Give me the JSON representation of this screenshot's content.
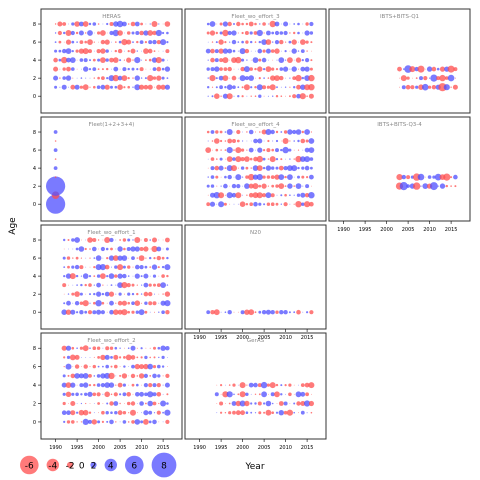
{
  "figure": {
    "ylabel": "Age",
    "xlabel": "Year",
    "colors": {
      "negative": "#ff4d4d",
      "positive": "#4d4dff",
      "frame": "#333333",
      "title": "#888888"
    }
  },
  "axes": {
    "x_ticks": [
      1990,
      1995,
      2000,
      2005,
      2010,
      2015
    ],
    "y_ticks": [
      0,
      2,
      4,
      6,
      8
    ],
    "xlim": [
      1988,
      2018
    ],
    "ylim": [
      -1.2,
      9
    ]
  },
  "legend": {
    "items": [
      {
        "label": "-6",
        "value": -6
      },
      {
        "label": "-4",
        "value": -4
      },
      {
        "label": "-2",
        "value": -2
      },
      {
        "label": "0",
        "value": 0
      },
      {
        "label": "2",
        "value": 2
      },
      {
        "label": "4",
        "value": 4
      },
      {
        "label": "6",
        "value": 6
      },
      {
        "label": "8",
        "value": 8
      }
    ]
  },
  "chart_data": [
    {
      "type": "scatter",
      "title": "HERAS",
      "years": [
        1990,
        2016
      ],
      "ages": [
        1,
        8
      ],
      "pattern": "fleetA"
    },
    {
      "type": "scatter",
      "title": "Fleet_wo_effort_3",
      "years": [
        1992,
        2016
      ],
      "ages": [
        0,
        8
      ],
      "pattern": "fleetB"
    },
    {
      "type": "scatter",
      "title": "IBTS+BITS-Q1",
      "years": [
        2003,
        2016
      ],
      "ages": [
        1,
        3
      ],
      "pattern": "survey"
    },
    {
      "type": "scatter",
      "title": "Fleet(1+2+3+4)",
      "years": [
        1990,
        1990
      ],
      "ages": [
        0,
        8
      ],
      "pattern": "single"
    },
    {
      "type": "scatter",
      "title": "Fleet_wo_effort_4",
      "years": [
        1992,
        2016
      ],
      "ages": [
        0,
        8
      ],
      "pattern": "fleetB"
    },
    {
      "type": "scatter",
      "title": "IBTS+BITS-Q3-4",
      "years": [
        2003,
        2016
      ],
      "ages": [
        2,
        3
      ],
      "pattern": "survey"
    },
    {
      "type": "scatter",
      "title": "Fleet_wo_effort_1",
      "years": [
        1992,
        2016
      ],
      "ages": [
        0,
        8
      ],
      "pattern": "fleetC"
    },
    {
      "type": "scatter",
      "title": "N20",
      "years": [
        1992,
        2016
      ],
      "ages": [
        0,
        0
      ],
      "pattern": "n20"
    },
    {
      "type": "scatter",
      "title": "Fleet_wo_effort_2",
      "years": [
        1992,
        2016
      ],
      "ages": [
        0,
        8
      ],
      "pattern": "fleetC"
    },
    {
      "type": "scatter",
      "title": "GerAS",
      "years": [
        1994,
        2016
      ],
      "ages": [
        1,
        4
      ],
      "pattern": "fleetA"
    }
  ]
}
